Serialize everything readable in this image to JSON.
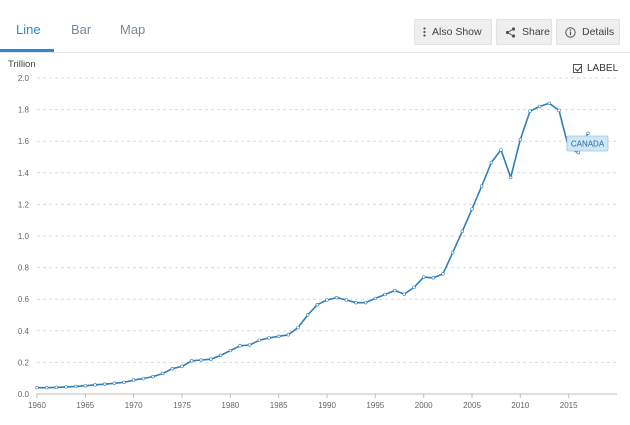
{
  "tabs": [
    {
      "label": "Line",
      "active": true
    },
    {
      "label": "Bar",
      "active": false
    },
    {
      "label": "Map",
      "active": false
    }
  ],
  "toolbar": {
    "also_show_label": "Also Show",
    "share_label": "Share",
    "details_label": "Details",
    "also_show_icon": "vertical-dots-icon",
    "share_icon": "share-icon",
    "details_icon": "info-icon"
  },
  "label_toggle": {
    "label": "LABEL",
    "checked": true
  },
  "colors": {
    "line": "#2e7fb8",
    "accent": "#2a8ad0",
    "series_label_bg": "#cfe6f6"
  },
  "chart_data": {
    "type": "line",
    "unit_label": "Trillion",
    "ylim": [
      0,
      2.0
    ],
    "xlim": [
      1960,
      2020
    ],
    "y_ticks": [
      "0.0",
      "0.2",
      "0.4",
      "0.6",
      "0.8",
      "1.0",
      "1.2",
      "1.4",
      "1.6",
      "1.8",
      "2.0"
    ],
    "x_ticks": [
      "1960",
      "1965",
      "1970",
      "1975",
      "1980",
      "1985",
      "1990",
      "1995",
      "2000",
      "2005",
      "2010",
      "2015"
    ],
    "grid": true,
    "series": [
      {
        "name": "CANADA",
        "x": [
          1960,
          1961,
          1962,
          1963,
          1964,
          1965,
          1966,
          1967,
          1968,
          1969,
          1970,
          1971,
          1972,
          1973,
          1974,
          1975,
          1976,
          1977,
          1978,
          1979,
          1980,
          1981,
          1982,
          1983,
          1984,
          1985,
          1986,
          1987,
          1988,
          1989,
          1990,
          1991,
          1992,
          1993,
          1994,
          1995,
          1996,
          1997,
          1998,
          1999,
          2000,
          2001,
          2002,
          2003,
          2004,
          2005,
          2006,
          2007,
          2008,
          2009,
          2010,
          2011,
          2012,
          2013,
          2014,
          2015,
          2016,
          2017
        ],
        "values": [
          0.04,
          0.04,
          0.042,
          0.045,
          0.048,
          0.052,
          0.058,
          0.062,
          0.068,
          0.074,
          0.088,
          0.098,
          0.11,
          0.13,
          0.16,
          0.175,
          0.21,
          0.215,
          0.22,
          0.245,
          0.275,
          0.305,
          0.31,
          0.34,
          0.355,
          0.365,
          0.375,
          0.42,
          0.5,
          0.565,
          0.595,
          0.61,
          0.595,
          0.578,
          0.578,
          0.605,
          0.63,
          0.655,
          0.632,
          0.675,
          0.74,
          0.735,
          0.76,
          0.895,
          1.03,
          1.17,
          1.315,
          1.465,
          1.545,
          1.37,
          1.61,
          1.79,
          1.82,
          1.84,
          1.795,
          1.555,
          1.528,
          1.65
        ]
      }
    ]
  }
}
